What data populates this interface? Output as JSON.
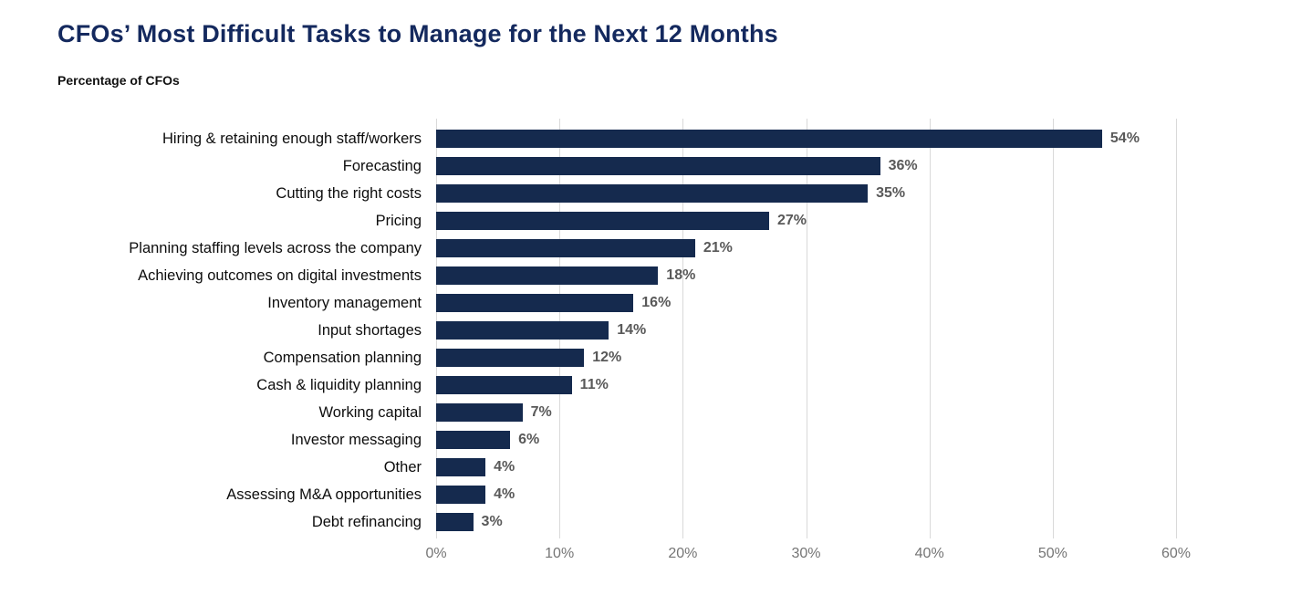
{
  "header": {
    "title": "CFOs’ Most Difficult Tasks to Manage for the Next 12 Months",
    "subtitle": "Percentage of CFOs"
  },
  "chart_data": {
    "type": "bar",
    "orientation": "horizontal",
    "title": "CFOs’ Most Difficult Tasks to Manage for the Next 12 Months",
    "subtitle": "Percentage of CFOs",
    "categories": [
      "Hiring & retaining enough staff/workers",
      "Forecasting",
      "Cutting the right costs",
      "Pricing",
      "Planning staffing levels across the company",
      "Achieving outcomes on digital investments",
      "Inventory management",
      "Input shortages",
      "Compensation planning",
      "Cash & liquidity planning",
      "Working capital",
      "Investor messaging",
      "Other",
      "Assessing M&A opportunities",
      "Debt refinancing"
    ],
    "values": [
      54,
      36,
      35,
      27,
      21,
      18,
      16,
      14,
      12,
      11,
      7,
      6,
      4,
      4,
      3
    ],
    "value_labels": [
      "54%",
      "36%",
      "35%",
      "27%",
      "21%",
      "18%",
      "16%",
      "14%",
      "12%",
      "11%",
      "7%",
      "6%",
      "4%",
      "4%",
      "3%"
    ],
    "xlabel": "",
    "ylabel": "",
    "xlim": [
      0,
      60
    ],
    "x_ticks": [
      0,
      10,
      20,
      30,
      40,
      50,
      60
    ],
    "x_tick_labels": [
      "0%",
      "10%",
      "20%",
      "30%",
      "40%",
      "50%",
      "60%"
    ],
    "grid": "vertical-on",
    "legend": "none",
    "colors": {
      "bar": "#152a4e",
      "title": "#14295e",
      "category_label": "#0d0d0d",
      "value_label": "#595959",
      "tick_label": "#757575",
      "gridline": "#d9d9d9",
      "background": "#ffffff"
    }
  }
}
